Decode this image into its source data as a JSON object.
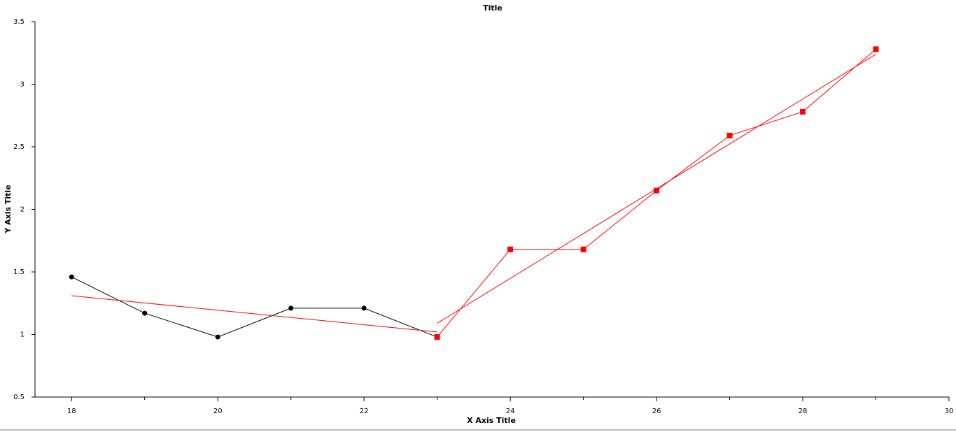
{
  "chart_data": {
    "type": "line",
    "title": "Title",
    "x_label": "X Axis Title",
    "y_label": "Y Axis Title",
    "xlim": [
      17.5,
      30
    ],
    "xticks": [
      18,
      20,
      22,
      24,
      26,
      28,
      30
    ],
    "xminorticks": [
      19,
      21,
      23,
      25,
      27,
      29
    ],
    "ylim": [
      0.5,
      3.5
    ],
    "yticks": [
      0.5,
      1,
      1.5,
      2,
      2.5,
      3,
      3.5
    ],
    "series": [
      {
        "color": "#000000",
        "marker": "circle",
        "x": [
          18,
          19,
          20,
          21,
          22,
          23
        ],
        "values": [
          1.46,
          1.17,
          0.98,
          1.21,
          1.21,
          0.98
        ]
      },
      {
        "color": "#ff0000",
        "marker": "square",
        "x": [
          23,
          24,
          25,
          26,
          27,
          28,
          29
        ],
        "values": [
          0.98,
          1.68,
          1.68,
          2.15,
          2.59,
          2.78,
          3.28
        ]
      },
      {
        "color": "#ff0000",
        "marker": "none",
        "x": [
          18,
          23
        ],
        "values": [
          1.31,
          1.02
        ]
      },
      {
        "color": "#ff0000",
        "marker": "none",
        "x": [
          23,
          29
        ],
        "values": [
          1.09,
          3.24
        ]
      }
    ]
  }
}
